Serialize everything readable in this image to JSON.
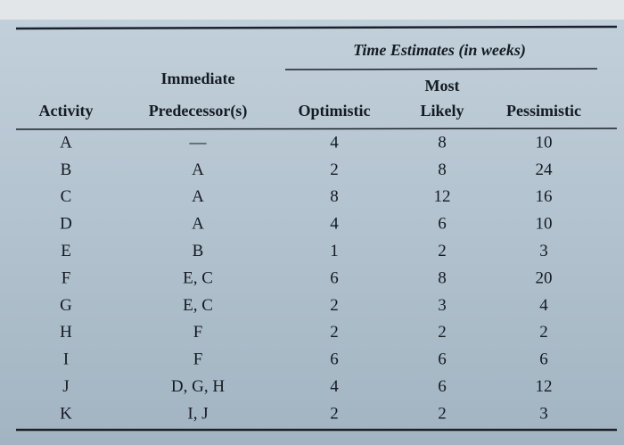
{
  "table": {
    "group_header": "Time Estimates (in weeks)",
    "headers": [
      [
        "Activity"
      ],
      [
        "Immediate",
        "Predecessor(s)"
      ],
      [
        "Optimistic"
      ],
      [
        "Most",
        "Likely"
      ],
      [
        "Pessimistic"
      ]
    ],
    "rows": [
      [
        "A",
        "—",
        4,
        8,
        10
      ],
      [
        "B",
        "A",
        2,
        8,
        24
      ],
      [
        "C",
        "A",
        8,
        12,
        16
      ],
      [
        "D",
        "A",
        4,
        6,
        10
      ],
      [
        "E",
        "B",
        1,
        2,
        3
      ],
      [
        "F",
        "E, C",
        6,
        8,
        20
      ],
      [
        "G",
        "E, C",
        2,
        3,
        4
      ],
      [
        "H",
        "F",
        2,
        2,
        2
      ],
      [
        "I",
        "F",
        6,
        6,
        6
      ],
      [
        "J",
        "D, G, H",
        4,
        6,
        12
      ],
      [
        "K",
        "I, J",
        2,
        2,
        3
      ]
    ]
  }
}
